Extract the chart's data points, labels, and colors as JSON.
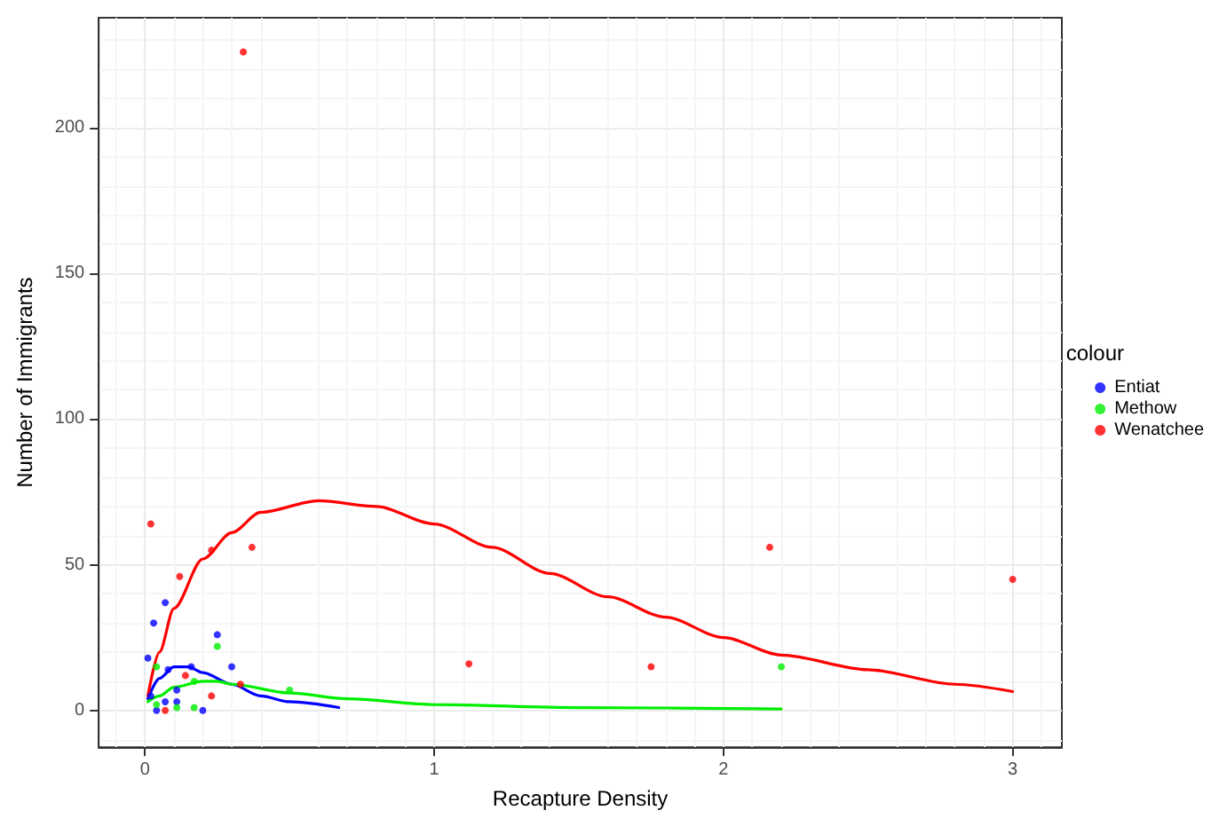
{
  "chart_data": {
    "type": "scatter",
    "xlabel": "Recapture Density",
    "ylabel": "Number of Immigrants",
    "legend_title": "colour",
    "xlim": [
      -0.16,
      3.17
    ],
    "ylim": [
      -12.6,
      237.7
    ],
    "xticks": [
      0,
      1,
      2,
      3
    ],
    "yticks": [
      0,
      50,
      100,
      150,
      200
    ],
    "grid": true,
    "legend": "right",
    "marker": "circle",
    "series": [
      {
        "name": "Entiat",
        "color": "#0000ff",
        "x": [
          0.07,
          0.03,
          0.01,
          0.25,
          0.3,
          0.2,
          0.04,
          0.11,
          0.07,
          0.02,
          0.11,
          0.16,
          0.08
        ],
        "values": [
          37,
          30,
          18,
          26,
          15,
          0,
          0,
          3,
          3,
          5,
          7,
          15,
          14
        ]
      },
      {
        "name": "Methow",
        "color": "#00ee00",
        "x": [
          2.2,
          0.25,
          0.17,
          0.11,
          0.04,
          0.17,
          0.04,
          0.5
        ],
        "values": [
          15,
          22,
          1,
          1,
          15,
          10,
          2,
          7
        ]
      },
      {
        "name": "Wenatchee",
        "color": "#ff0000",
        "x": [
          0.02,
          0.23,
          0.37,
          0.12,
          0.07,
          0.23,
          0.14,
          0.33,
          0.34,
          1.12,
          1.75,
          2.16,
          3.0
        ],
        "values": [
          64,
          55,
          56,
          46,
          0,
          5,
          12,
          9,
          226,
          16,
          15,
          56,
          45
        ]
      },
      {
        "type": "line",
        "marker": "none",
        "color": "#0000ff",
        "x": [
          0.01,
          0.05,
          0.1,
          0.15,
          0.2,
          0.3,
          0.4,
          0.5,
          0.67
        ],
        "values": [
          4,
          11,
          15,
          15,
          13,
          9,
          5,
          3,
          1
        ]
      },
      {
        "type": "line",
        "marker": "none",
        "color": "#00ee00",
        "x": [
          0.01,
          0.05,
          0.1,
          0.2,
          0.25,
          0.3,
          0.5,
          0.7,
          1.0,
          1.5,
          2.2
        ],
        "values": [
          3,
          5,
          8,
          10,
          10,
          9,
          6,
          4,
          2,
          1,
          0.5
        ]
      },
      {
        "type": "line",
        "marker": "none",
        "color": "#ff0000",
        "x": [
          0.01,
          0.05,
          0.1,
          0.2,
          0.3,
          0.4,
          0.6,
          0.8,
          1.0,
          1.2,
          1.4,
          1.6,
          1.8,
          2.0,
          2.2,
          2.5,
          2.8,
          3.0
        ],
        "values": [
          5,
          20,
          35,
          52,
          61,
          68,
          72,
          70,
          64,
          56,
          47,
          39,
          32,
          25,
          19,
          14,
          9,
          6.5
        ]
      }
    ]
  }
}
